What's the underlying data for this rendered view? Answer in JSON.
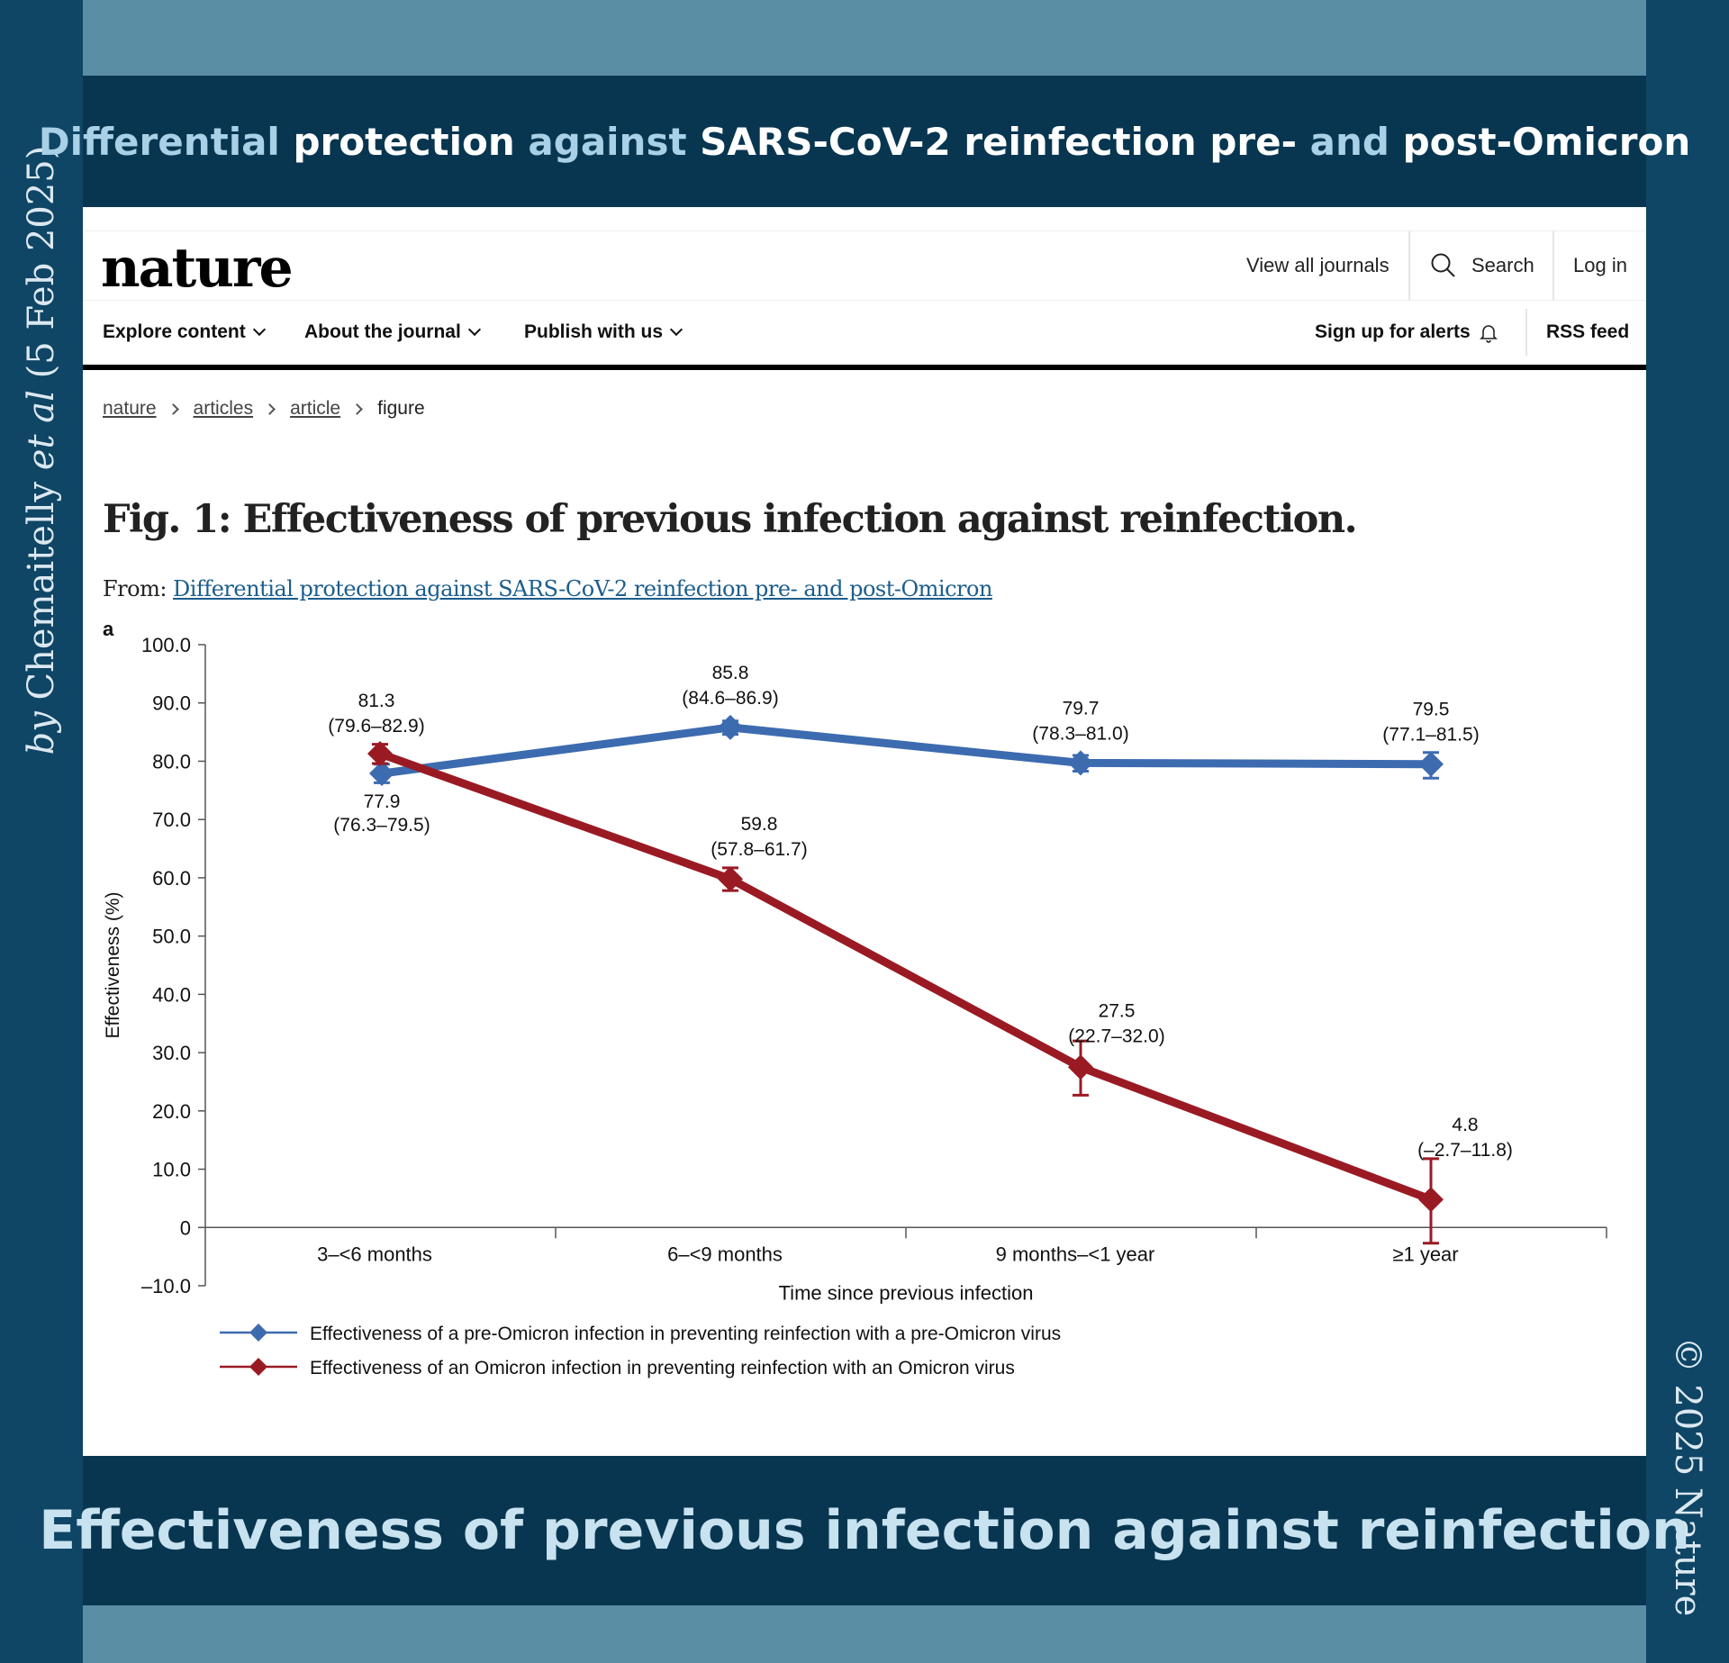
{
  "side_left": {
    "prefix": "by Chemaitelly ",
    "etal": "et al",
    "date": " (5 Feb 2025)"
  },
  "side_right": "© 2025 Nature",
  "top_title": {
    "w1": "Differential",
    "w2": " protection ",
    "w3": "against",
    "w4": " SARS-CoV-2 reinfection pre- ",
    "w5": "and",
    "w6": " post-Omicron"
  },
  "bottom_title": "Effectiveness of previous infection against reinfection",
  "header": {
    "logo": "nature",
    "view_all": "View all journals",
    "search": "Search",
    "login": "Log in"
  },
  "nav": {
    "explore": "Explore content",
    "about": "About the journal",
    "publish": "Publish with us",
    "alerts": "Sign up for alerts",
    "rss": "RSS feed"
  },
  "breadcrumb": [
    "nature",
    "articles",
    "article",
    "figure"
  ],
  "figure": {
    "title": "Fig. 1: Effectiveness of previous infection against reinfection.",
    "from_label": "From: ",
    "from_link": "Differential protection against SARS-CoV-2 reinfection pre- and post-Omicron"
  },
  "chart_data": {
    "type": "line",
    "panel_label": "a",
    "categories": [
      "3–<6 months",
      "6–<9 months",
      "9 months–<1 year",
      "≥1 year"
    ],
    "xlabel": "Time since previous infection",
    "ylabel": "Effectiveness (%)",
    "ylim": [
      -10,
      100
    ],
    "yticks": [
      "100.0",
      "90.0",
      "80.0",
      "70.0",
      "60.0",
      "50.0",
      "40.0",
      "30.0",
      "20.0",
      "10.0",
      "0",
      "–10.0"
    ],
    "ytick_values": [
      100,
      90,
      80,
      70,
      60,
      50,
      40,
      30,
      20,
      10,
      0,
      -10
    ],
    "legend_position": "bottom-left",
    "series": [
      {
        "name": "Effectiveness of a pre-Omicron infection in preventing reinfection with a pre-Omicron virus",
        "color": "#3d6bb0",
        "values": [
          77.9,
          85.8,
          79.7,
          79.5
        ],
        "ci_low": [
          76.3,
          84.6,
          78.3,
          77.1
        ],
        "ci_high": [
          79.5,
          86.9,
          81.0,
          81.5
        ],
        "labels": [
          {
            "value": "77.9",
            "ci": "(76.3–79.5)"
          },
          {
            "value": "85.8",
            "ci": "(84.6–86.9)"
          },
          {
            "value": "79.7",
            "ci": "(78.3–81.0)"
          },
          {
            "value": "79.5",
            "ci": "(77.1–81.5)"
          }
        ]
      },
      {
        "name": "Effectiveness of an Omicron infection in preventing reinfection with an Omicron virus",
        "color": "#9a1a24",
        "values": [
          81.3,
          59.8,
          27.5,
          4.8
        ],
        "ci_low": [
          79.6,
          57.8,
          22.7,
          -2.7
        ],
        "ci_high": [
          82.9,
          61.7,
          32.0,
          11.8
        ],
        "labels": [
          {
            "value": "81.3",
            "ci": "(79.6–82.9)"
          },
          {
            "value": "59.8",
            "ci": "(57.8–61.7)"
          },
          {
            "value": "27.5",
            "ci": "(22.7–32.0)"
          },
          {
            "value": "4.8",
            "ci": "(–2.7–11.8)"
          }
        ]
      }
    ]
  }
}
